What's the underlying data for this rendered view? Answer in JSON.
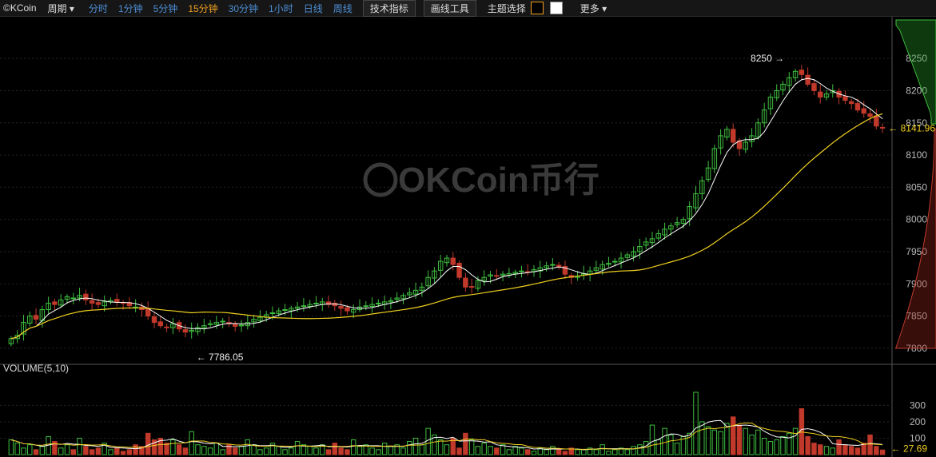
{
  "toolbar": {
    "logo": "©KCoin",
    "period_select": "周期",
    "periods": [
      "分时",
      "1分钟",
      "5分钟",
      "15分钟",
      "30分钟",
      "1小时",
      "日线",
      "周线"
    ],
    "active_period": "15分钟",
    "indicators_button": "技术指标",
    "drawing_tools_button": "画线工具",
    "theme_label": "主题选择",
    "theme_dark_color": "#000000",
    "theme_light_color": "#ffffff",
    "more_label": "更多"
  },
  "watermark": "OKCoin币行",
  "chart_data": [
    {
      "type": "candlestick",
      "ylim": [
        7780,
        8280
      ],
      "yticks": [
        "8250",
        "8200",
        "8150",
        "8100",
        "8050",
        "8000",
        "7950",
        "7900",
        "7850",
        "7800"
      ],
      "high_annotation": "8250",
      "low_annotation": "7786.05",
      "last_price": "8141.96",
      "colors": {
        "up": "#3fbf3f",
        "down": "#c0392b",
        "ma_fast": "#ffffff",
        "ma_slow": "#f0d020"
      },
      "close": [
        7815,
        7820,
        7840,
        7850,
        7845,
        7860,
        7870,
        7868,
        7875,
        7880,
        7878,
        7882,
        7875,
        7870,
        7868,
        7872,
        7874,
        7872,
        7870,
        7866,
        7864,
        7860,
        7850,
        7840,
        7835,
        7832,
        7838,
        7830,
        7825,
        7828,
        7832,
        7835,
        7838,
        7840,
        7842,
        7838,
        7834,
        7836,
        7840,
        7845,
        7848,
        7852,
        7855,
        7858,
        7860,
        7862,
        7864,
        7866,
        7868,
        7870,
        7872,
        7868,
        7866,
        7862,
        7858,
        7860,
        7864,
        7866,
        7868,
        7870,
        7872,
        7874,
        7878,
        7882,
        7886,
        7890,
        7895,
        7910,
        7920,
        7935,
        7940,
        7930,
        7910,
        7895,
        7895,
        7905,
        7910,
        7914,
        7912,
        7915,
        7916,
        7918,
        7920,
        7918,
        7922,
        7925,
        7928,
        7930,
        7926,
        7915,
        7910,
        7912,
        7916,
        7920,
        7925,
        7930,
        7932,
        7935,
        7940,
        7945,
        7950,
        7958,
        7965,
        7970,
        7978,
        7985,
        7990,
        7995,
        8000,
        8020,
        8040,
        8060,
        8080,
        8110,
        8130,
        8140,
        8120,
        8110,
        8120,
        8130,
        8150,
        8170,
        8190,
        8200,
        8210,
        8220,
        8230,
        8225,
        8210,
        8200,
        8190,
        8195,
        8200,
        8190,
        8185,
        8180,
        8170,
        8165,
        8160,
        8145,
        8141.96
      ],
      "volume": {
        "label": "VOLUME(5,10)",
        "yticks": [
          "300",
          "200",
          "100"
        ],
        "ylim": [
          0,
          380
        ],
        "last": "27.69",
        "values": [
          90,
          70,
          40,
          60,
          30,
          50,
          110,
          80,
          40,
          60,
          30,
          100,
          50,
          30,
          40,
          70,
          30,
          40,
          20,
          30,
          60,
          50,
          130,
          90,
          100,
          70,
          90,
          60,
          40,
          140,
          60,
          50,
          40,
          70,
          30,
          60,
          40,
          50,
          90,
          60,
          30,
          40,
          70,
          50,
          30,
          40,
          80,
          60,
          50,
          40,
          60,
          30,
          70,
          40,
          30,
          90,
          50,
          60,
          40,
          30,
          70,
          50,
          60,
          40,
          80,
          100,
          60,
          160,
          120,
          90,
          60,
          100,
          40,
          130,
          90,
          50,
          70,
          50,
          40,
          60,
          30,
          50,
          40,
          30,
          20,
          40,
          30,
          50,
          30,
          20,
          40,
          30,
          30,
          40,
          30,
          60,
          20,
          30,
          40,
          30,
          50,
          60,
          80,
          180,
          90,
          160,
          120,
          70,
          110,
          130,
          380,
          200,
          170,
          150,
          140,
          190,
          230,
          180,
          160,
          120,
          150,
          100,
          80,
          90,
          110,
          130,
          160,
          280,
          110,
          70,
          60,
          50,
          40,
          90,
          60,
          50,
          40,
          70,
          120,
          50,
          28
        ]
      }
    }
  ]
}
